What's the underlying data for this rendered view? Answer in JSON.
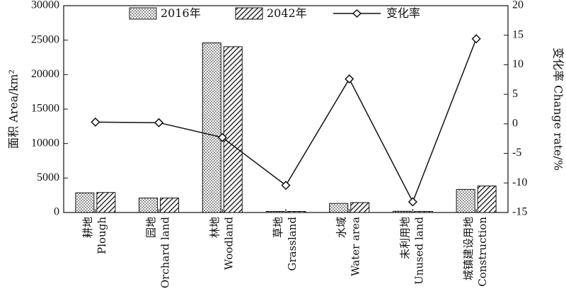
{
  "chart_data": {
    "type": "bar",
    "categories": [
      {
        "zh": "耕地",
        "en": "Plough"
      },
      {
        "zh": "园地",
        "en": "Orchard land"
      },
      {
        "zh": "林地",
        "en": "Woodland"
      },
      {
        "zh": "草地",
        "en": "Grassland"
      },
      {
        "zh": "水域",
        "en": "Water area"
      },
      {
        "zh": "未利用地",
        "en": "Unused land"
      },
      {
        "zh": "城镇建设用地",
        "en": "Construction"
      }
    ],
    "series": [
      {
        "name": "2016年",
        "kind": "bar",
        "pattern": "dots",
        "values": [
          2850,
          2100,
          24600,
          160,
          1320,
          180,
          3350
        ]
      },
      {
        "name": "2042年",
        "kind": "bar",
        "pattern": "hatch",
        "values": [
          2900,
          2100,
          24050,
          155,
          1440,
          160,
          3850
        ]
      },
      {
        "name": "变化率",
        "kind": "line",
        "axis": "right",
        "values": [
          0.3,
          0.2,
          -2.3,
          -10.4,
          7.6,
          -13.2,
          14.4
        ]
      }
    ],
    "ylabel": "面积 Area/km²",
    "ylabel_right": "变化率 Change rate/%",
    "ylim": [
      0,
      30000
    ],
    "yticks": [
      "0",
      "5000",
      "10000",
      "15000",
      "20000",
      "25000",
      "30000"
    ],
    "ylim_right": [
      -15,
      20
    ],
    "yticks_right": [
      "-15",
      "-10",
      "-5",
      "0",
      "5",
      "10",
      "15",
      "20"
    ],
    "legend_position": "top-center",
    "grid": false,
    "colors": {
      "bar_fill": "#ffffff",
      "pattern": "#111111",
      "line": "#111111"
    }
  }
}
